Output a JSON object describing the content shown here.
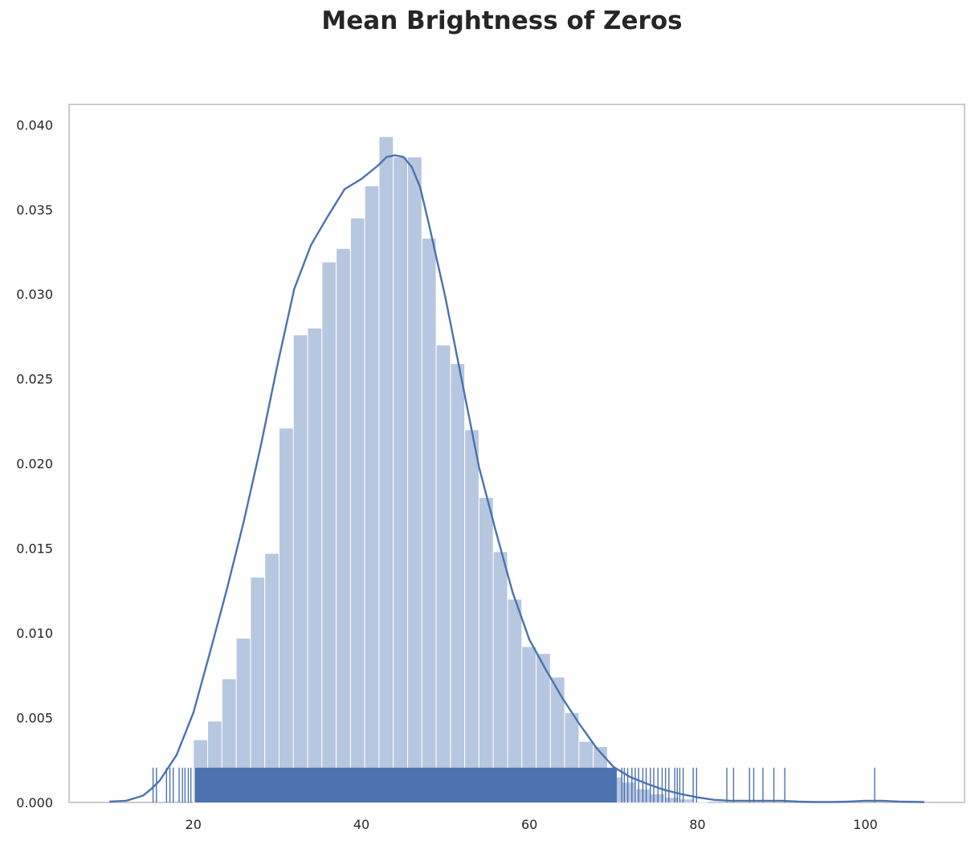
{
  "chart_data": {
    "type": "bar",
    "title": "Mean Brightness of Zeros",
    "xlabel": "",
    "ylabel": "",
    "xlim": [
      5.2,
      111.8
    ],
    "ylim": [
      0,
      0.0412
    ],
    "grid": false,
    "xticks": [
      20,
      40,
      60,
      80,
      100
    ],
    "yticks": [
      0.0,
      0.005,
      0.01,
      0.015,
      0.02,
      0.025,
      0.03,
      0.035,
      0.04
    ],
    "ytick_labels": [
      "0.000",
      "0.005",
      "0.010",
      "0.015",
      "0.020",
      "0.025",
      "0.030",
      "0.035",
      "0.040"
    ],
    "histogram": {
      "bin_edges": [
        20.0,
        21.7,
        23.4,
        25.1,
        26.8,
        28.5,
        30.2,
        31.9,
        33.6,
        35.3,
        37.0,
        38.7,
        40.4,
        42.1,
        43.8,
        45.5,
        47.2,
        48.9,
        50.6,
        52.3,
        54.0,
        55.7,
        57.4,
        59.1,
        60.8,
        62.5,
        64.2,
        65.9,
        67.6,
        69.3,
        71.0,
        72.7,
        74.4,
        76.1,
        77.8,
        79.5,
        81.2
      ],
      "densities": [
        0.0037,
        0.0048,
        0.0073,
        0.0097,
        0.0133,
        0.0147,
        0.0221,
        0.0276,
        0.028,
        0.0319,
        0.0327,
        0.0345,
        0.0364,
        0.0393,
        0.0381,
        0.0381,
        0.0333,
        0.027,
        0.0259,
        0.022,
        0.018,
        0.0148,
        0.012,
        0.0092,
        0.0088,
        0.0074,
        0.0053,
        0.0036,
        0.0033,
        0.0015,
        0.0012,
        0.0008,
        0.0005,
        0.0003,
        0.0002,
        5e-05
      ]
    },
    "kde": {
      "x": [
        10,
        12,
        14,
        15,
        16,
        18,
        20,
        22,
        24,
        26,
        28,
        30,
        32,
        34,
        36,
        38,
        40,
        42,
        43,
        44,
        45,
        46,
        47,
        48,
        50,
        52,
        54,
        56,
        58,
        60,
        62,
        64,
        66,
        68,
        70,
        72,
        74,
        76,
        78,
        80,
        82,
        84,
        86,
        88,
        90,
        92,
        94,
        96,
        98,
        100,
        101,
        102,
        104,
        107
      ],
      "y": [
        5e-05,
        0.0001,
        0.0004,
        0.0008,
        0.0013,
        0.0028,
        0.0053,
        0.0089,
        0.0126,
        0.0166,
        0.021,
        0.0258,
        0.0303,
        0.0329,
        0.0346,
        0.0362,
        0.0368,
        0.0376,
        0.0381,
        0.0382,
        0.0381,
        0.0375,
        0.0363,
        0.0342,
        0.0298,
        0.0248,
        0.0198,
        0.016,
        0.0124,
        0.0096,
        0.0078,
        0.0061,
        0.0046,
        0.0032,
        0.0021,
        0.0015,
        0.0011,
        0.00075,
        0.0005,
        0.0003,
        0.00015,
        0.0001,
        0.0001,
        0.0001,
        0.0001,
        5e-05,
        3e-05,
        3e-05,
        5e-05,
        0.0001,
        0.0001,
        0.0001,
        5e-05,
        3e-05
      ]
    },
    "rug": {
      "dense_range": [
        20.2,
        70.4
      ],
      "values": [
        15.2,
        15.6,
        16.8,
        17.2,
        17.6,
        18.3,
        18.7,
        19.0,
        19.4,
        19.7,
        71.0,
        71.3,
        71.7,
        72.2,
        72.6,
        73.0,
        73.5,
        73.9,
        74.4,
        74.8,
        75.3,
        75.8,
        76.2,
        76.6,
        77.3,
        77.6,
        77.9,
        78.3,
        79.5,
        79.9,
        83.5,
        84.3,
        86.2,
        86.7,
        87.8,
        89.1,
        90.4,
        101.1
      ]
    },
    "color": "#4c72b0"
  }
}
